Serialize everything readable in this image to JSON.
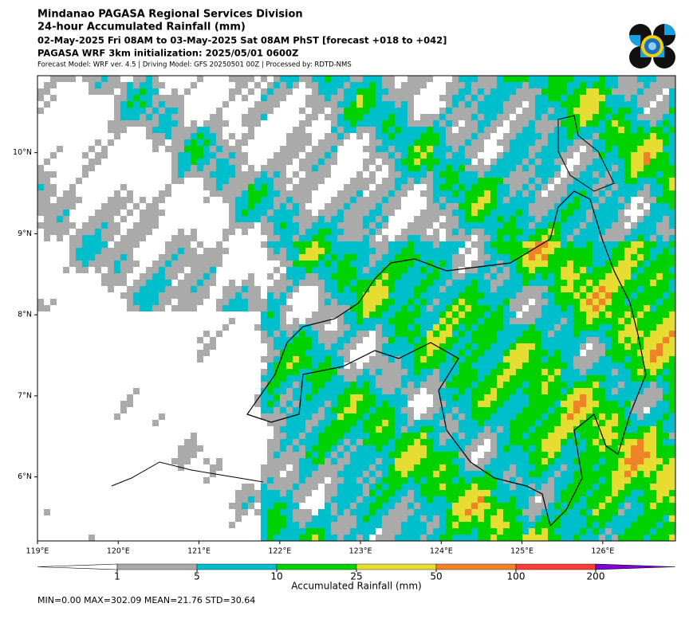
{
  "header": {
    "title": "Mindanao PAGASA Regional Services Division",
    "subtitle": "24-hour Accumulated Rainfall (mm)",
    "period": "02-May-2025 Fri 08AM to 03-May-2025 Sat 08AM PhST [forecast +018 to +042]",
    "init": "PAGASA WRF 3km initialization: 2025/05/01 0600Z",
    "model": "Forecast Model: WRF ver. 4.5 | Driving Model: GFS 20250501 00Z | Processed by: RDTD-NMS"
  },
  "map": {
    "xlim": [
      119,
      126.9
    ],
    "ylim": [
      5.21,
      10.95
    ],
    "lon_ticks": [
      {
        "value": 119,
        "label": "119°E"
      },
      {
        "value": 120,
        "label": "120°E"
      },
      {
        "value": 121,
        "label": "121°E"
      },
      {
        "value": 122,
        "label": "122°E"
      },
      {
        "value": 123,
        "label": "123°E"
      },
      {
        "value": 124,
        "label": "124°E"
      },
      {
        "value": 125,
        "label": "125°E"
      },
      {
        "value": 126,
        "label": "126°E"
      }
    ],
    "lat_ticks": [
      {
        "value": 6,
        "label": "6°N"
      },
      {
        "value": 7,
        "label": "7°N"
      },
      {
        "value": 8,
        "label": "8°N"
      },
      {
        "value": 9,
        "label": "9°N"
      },
      {
        "value": 10,
        "label": "10°N"
      }
    ]
  },
  "colorbar": {
    "label": "Accumulated Rainfall (mm)",
    "levels": [
      1,
      5,
      10,
      25,
      50,
      100,
      200
    ],
    "colors": [
      "#ffffff",
      "#aaaaaa",
      "#00bfcc",
      "#00d200",
      "#e6dc32",
      "#f08228",
      "#fa3c3c",
      "#8200dc"
    ]
  },
  "stats": "MIN=0.00   MAX=302.09   MEAN=21.76   STD=30.64"
}
